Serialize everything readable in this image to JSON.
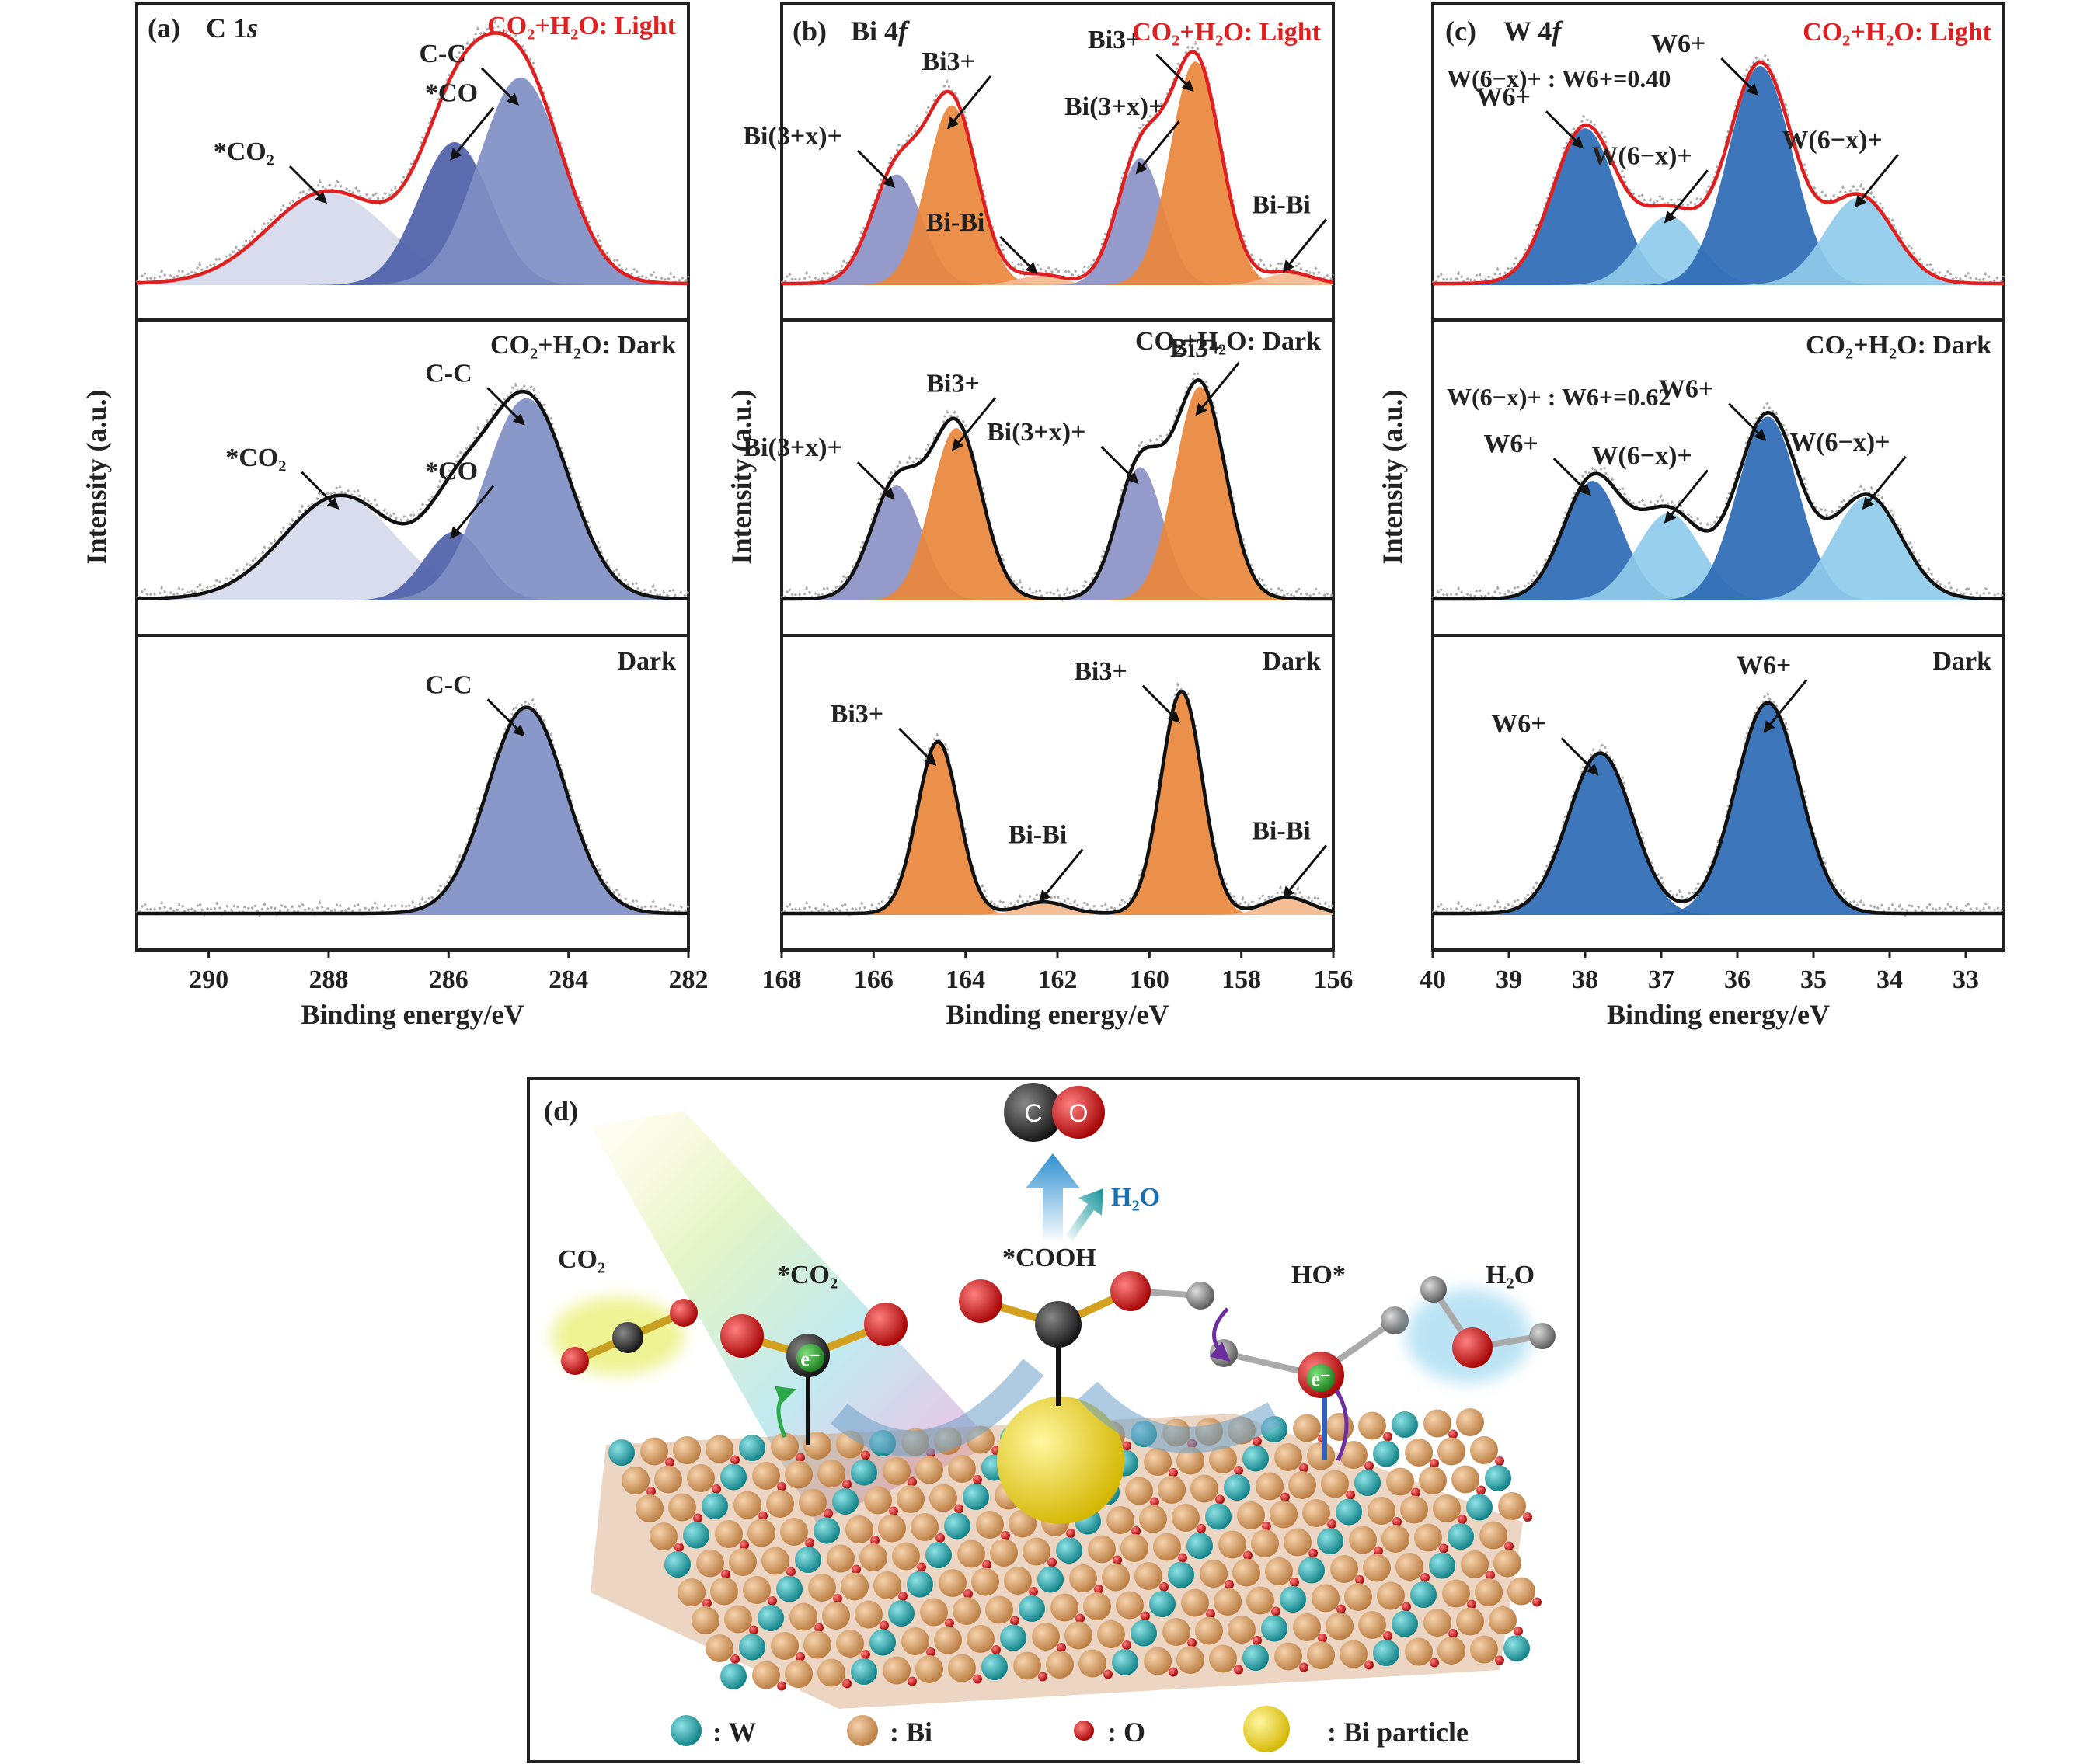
{
  "colors": {
    "light_curve": "#e02020",
    "dark_curve": "#111111",
    "raw_dots": "#aaaaaa",
    "light_label": "#e02020",
    "dark_label": "#222222"
  },
  "chart_data": [
    {
      "panel": "(a)",
      "element": "C 1s",
      "type": "area",
      "xlabel": "Binding energy/eV",
      "ylabel": "Intensity (a.u.)",
      "xlim": [
        291.2,
        282
      ],
      "xticks": [
        290,
        288,
        286,
        284,
        282
      ],
      "rows": [
        {
          "condition": "CO₂+H₂O: Light",
          "color": "light",
          "peaks": [
            {
              "label": "*CO₂",
              "center": 288.0,
              "height": 0.4,
              "width": 1.0,
              "color": "#d6d9ec"
            },
            {
              "label": "*CO",
              "center": 285.9,
              "height": 0.62,
              "width": 0.6,
              "color": "#4e5fa8"
            },
            {
              "label": "C-C",
              "center": 284.8,
              "height": 0.9,
              "width": 0.7,
              "color": "#7f8fc4"
            }
          ]
        },
        {
          "condition": "CO₂+H₂O: Dark",
          "color": "dark",
          "peaks": [
            {
              "label": "*CO₂",
              "center": 287.8,
              "height": 0.45,
              "width": 0.95,
              "color": "#d6d9ec"
            },
            {
              "label": "*CO",
              "center": 285.9,
              "height": 0.3,
              "width": 0.5,
              "color": "#4e5fa8"
            },
            {
              "label": "C-C",
              "center": 284.7,
              "height": 0.88,
              "width": 0.7,
              "color": "#7f8fc4"
            }
          ]
        },
        {
          "condition": "Dark",
          "color": "dark",
          "peaks": [
            {
              "label": "C-C",
              "center": 284.7,
              "height": 0.9,
              "width": 0.65,
              "color": "#7f8fc4"
            }
          ]
        }
      ]
    },
    {
      "panel": "(b)",
      "element": "Bi 4f",
      "type": "area",
      "xlabel": "Binding energy/eV",
      "ylabel": "Intensity (a.u.)",
      "xlim": [
        168,
        156
      ],
      "xticks": [
        168,
        166,
        164,
        162,
        160,
        158,
        156
      ],
      "rows": [
        {
          "condition": "CO₂+H₂O: Light",
          "color": "light",
          "peaks": [
            {
              "label": "Bi(3+x)+",
              "center": 165.5,
              "height": 0.48,
              "width": 0.55,
              "color": "#8b93c6"
            },
            {
              "label": "Bi3+",
              "center": 164.3,
              "height": 0.78,
              "width": 0.55,
              "color": "#e9873c"
            },
            {
              "label": "Bi-Bi",
              "center": 162.4,
              "height": 0.04,
              "width": 0.5,
              "color": "#f3b98e"
            },
            {
              "label": "Bi(3+x)+",
              "center": 160.2,
              "height": 0.55,
              "width": 0.5,
              "color": "#8b93c6"
            },
            {
              "label": "Bi3+",
              "center": 159.0,
              "height": 0.97,
              "width": 0.55,
              "color": "#e9873c"
            },
            {
              "label": "Bi-Bi",
              "center": 157.0,
              "height": 0.05,
              "width": 0.5,
              "color": "#f3b98e"
            }
          ]
        },
        {
          "condition": "CO₂+H₂O: Dark",
          "color": "dark",
          "peaks": [
            {
              "label": "Bi(3+x)+",
              "center": 165.5,
              "height": 0.5,
              "width": 0.55,
              "color": "#8b93c6"
            },
            {
              "label": "Bi3+",
              "center": 164.2,
              "height": 0.75,
              "width": 0.55,
              "color": "#e9873c"
            },
            {
              "label": "Bi(3+x)+",
              "center": 160.2,
              "height": 0.58,
              "width": 0.5,
              "color": "#8b93c6"
            },
            {
              "label": "Bi3+",
              "center": 158.9,
              "height": 0.93,
              "width": 0.55,
              "color": "#e9873c"
            }
          ]
        },
        {
          "condition": "Dark",
          "color": "dark",
          "peaks": [
            {
              "label": "Bi3+",
              "center": 164.6,
              "height": 0.75,
              "width": 0.45,
              "color": "#e9873c"
            },
            {
              "label": "Bi-Bi",
              "center": 162.3,
              "height": 0.05,
              "width": 0.5,
              "color": "#f3b98e"
            },
            {
              "label": "Bi3+",
              "center": 159.3,
              "height": 0.97,
              "width": 0.45,
              "color": "#e9873c"
            },
            {
              "label": "Bi-Bi",
              "center": 157.0,
              "height": 0.07,
              "width": 0.5,
              "color": "#f3b98e"
            }
          ]
        }
      ]
    },
    {
      "panel": "(c)",
      "element": "W 4f",
      "type": "area",
      "xlabel": "Binding energy/eV",
      "ylabel": "Intensity (a.u.)",
      "xlim": [
        40,
        32.5
      ],
      "xticks": [
        40,
        39,
        38,
        37,
        36,
        35,
        34,
        33
      ],
      "rows": [
        {
          "condition": "CO₂+H₂O: Light",
          "color": "light",
          "ratio": "W(6−x)+ : W6+=0.40",
          "peaks": [
            {
              "label": "W6+",
              "center": 38.0,
              "height": 0.68,
              "width": 0.42,
              "color": "#2d6ab5"
            },
            {
              "label": "W(6−x)+",
              "center": 36.9,
              "height": 0.3,
              "width": 0.4,
              "color": "#8fcbea"
            },
            {
              "label": "W6+",
              "center": 35.7,
              "height": 0.95,
              "width": 0.42,
              "color": "#2d6ab5"
            },
            {
              "label": "W(6−x)+",
              "center": 34.4,
              "height": 0.38,
              "width": 0.45,
              "color": "#8fcbea"
            }
          ]
        },
        {
          "condition": "CO₂+H₂O: Dark",
          "color": "dark",
          "ratio": "W(6−x)+ : W6+=0.62",
          "peaks": [
            {
              "label": "W6+",
              "center": 37.9,
              "height": 0.52,
              "width": 0.38,
              "color": "#2d6ab5"
            },
            {
              "label": "W(6−x)+",
              "center": 36.9,
              "height": 0.38,
              "width": 0.42,
              "color": "#8fcbea"
            },
            {
              "label": "W6+",
              "center": 35.6,
              "height": 0.8,
              "width": 0.4,
              "color": "#2d6ab5"
            },
            {
              "label": "W(6−x)+",
              "center": 34.3,
              "height": 0.45,
              "width": 0.45,
              "color": "#8fcbea"
            }
          ]
        },
        {
          "condition": "Dark",
          "color": "dark",
          "peaks": [
            {
              "label": "W6+",
              "center": 37.8,
              "height": 0.7,
              "width": 0.42,
              "color": "#2d6ab5"
            },
            {
              "label": "W6+",
              "center": 35.6,
              "height": 0.92,
              "width": 0.42,
              "color": "#2d6ab5"
            }
          ]
        }
      ]
    }
  ],
  "panel_a": {
    "tag": "(a)",
    "element": "C 1",
    "element_sub": "s",
    "row1": "CO₂+H₂O: Light",
    "row2": "CO₂+H₂O: Dark",
    "row3": "Dark"
  },
  "panel_b": {
    "tag": "(b)",
    "element": "Bi 4",
    "element_sub": "f",
    "row1": "CO₂+H₂O: Light",
    "row2": "CO₂+H₂O: Dark",
    "row3": "Dark"
  },
  "panel_c": {
    "tag": "(c)",
    "element": "W 4",
    "element_sub": "f",
    "row1": "CO₂+H₂O: Light",
    "row2": "CO₂+H₂O: Dark",
    "row3": "Dark",
    "ratio1": "W(6−x)+ : W6+=0.40",
    "ratio2": "W(6−x)+ : W6+=0.62"
  },
  "schematic": {
    "tag": "(d)",
    "co_c": "C",
    "co_o": "O",
    "h2o_top": "H₂O",
    "co2_left": "CO₂",
    "co2_star": "*CO₂",
    "cooh": "*COOH",
    "ho_star": "HO*",
    "h2o_right": "H₂O",
    "electron": "e⁻",
    "legend": [
      {
        "label": ": W",
        "color": "#1aa3a8"
      },
      {
        "label": ": Bi",
        "color": "#d4a373"
      },
      {
        "label": ": O",
        "color": "#d91a1a"
      },
      {
        "label": ": Bi particle",
        "color": "#f2dc2a"
      }
    ]
  }
}
